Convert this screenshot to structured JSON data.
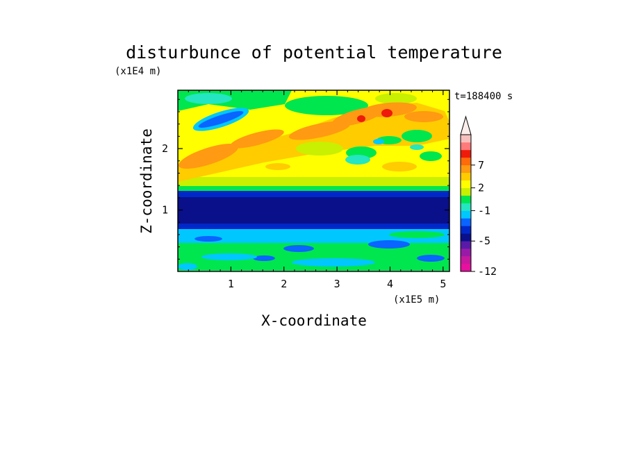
{
  "chart_data": {
    "type": "heatmap",
    "title": "disturbunce of potential temperature",
    "time_label": "t=188400 s",
    "xlabel": "X-coordinate",
    "ylabel": "Z-coordinate",
    "x_unit": "(x1E5 m)",
    "y_unit": "(x1E4 m)",
    "xlim": [
      0,
      5.12
    ],
    "ylim": [
      0,
      2.95
    ],
    "x_ticks": [
      "1",
      "2",
      "3",
      "4",
      "5"
    ],
    "y_ticks": [
      "1",
      "2"
    ],
    "colorbar": {
      "levels": [
        -12,
        -11,
        -9,
        -7,
        -5,
        -4,
        -3,
        -2,
        -1,
        0,
        1,
        2,
        3,
        5,
        7,
        9,
        11
      ],
      "labels": [
        "-12",
        "-5",
        "-1",
        "2",
        "7"
      ],
      "colors": [
        "#e8109f",
        "#c8189e",
        "#9a1aa8",
        "#5a1aa8",
        "#0a0f8a",
        "#0028c8",
        "#0a64ff",
        "#00c8ff",
        "#24e6c0",
        "#00e64e",
        "#c8f000",
        "#ffff00",
        "#ffcc00",
        "#ff9a12",
        "#ff6a0a",
        "#ee1a0a",
        "#ff7a7a",
        "#f6c0bc"
      ],
      "extend": "max"
    },
    "colors": {
      "red": "#ee1a0a",
      "orange": "#ff9a12",
      "lightorange": "#ffcc00",
      "yellow": "#ffff00",
      "yellowgreen": "#c8f000",
      "green": "#00e64e",
      "aqua": "#24e6c0",
      "cyan": "#00c8ff",
      "blue": "#0a64ff",
      "medblue": "#0028c8",
      "navy": "#0a0f8a"
    }
  }
}
